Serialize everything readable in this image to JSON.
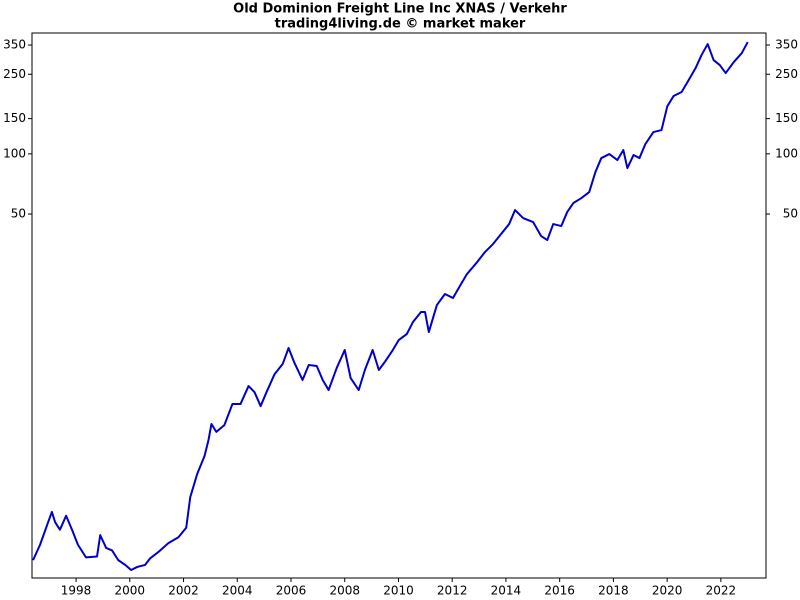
{
  "chart_data": {
    "type": "line",
    "title": "Old Dominion Freight Line Inc XNAS / Verkehr",
    "subtitle": "trading4living.de © market maker",
    "color": "#0000cc",
    "ylog": true,
    "grid": false,
    "xlim": [
      1996.36,
      2023.68
    ],
    "xticks": [
      1998,
      2000,
      2002,
      2004,
      2006,
      2008,
      2010,
      2012,
      2014,
      2016,
      2018,
      2020,
      2022
    ],
    "ylim": [
      0.757,
      402
    ],
    "yticks": [
      50,
      100,
      150,
      250,
      350
    ],
    "x": [
      1996.4,
      1996.66,
      1996.92,
      1997.1,
      1997.22,
      1997.4,
      1997.63,
      1997.85,
      1998.07,
      1998.37,
      1998.78,
      1998.9,
      1999.12,
      1999.34,
      1999.57,
      1999.83,
      2000.05,
      2000.28,
      2000.57,
      2000.76,
      2001.06,
      2001.43,
      2001.81,
      2002.1,
      2002.25,
      2002.51,
      2002.78,
      2002.93,
      2003.04,
      2003.22,
      2003.52,
      2003.82,
      2004.12,
      2004.42,
      2004.64,
      2004.87,
      2005.09,
      2005.39,
      2005.69,
      2005.91,
      2006.13,
      2006.43,
      2006.66,
      2006.96,
      2007.18,
      2007.4,
      2007.7,
      2008.0,
      2008.22,
      2008.52,
      2008.75,
      2009.04,
      2009.27,
      2009.49,
      2009.79,
      2010.01,
      2010.31,
      2010.54,
      2010.84,
      2010.99,
      2011.13,
      2011.43,
      2011.73,
      2012.03,
      2012.33,
      2012.55,
      2012.93,
      2013.22,
      2013.52,
      2013.82,
      2014.12,
      2014.34,
      2014.64,
      2015.01,
      2015.31,
      2015.54,
      2015.76,
      2016.06,
      2016.28,
      2016.51,
      2016.81,
      2017.1,
      2017.33,
      2017.55,
      2017.85,
      2018.15,
      2018.37,
      2018.52,
      2018.75,
      2018.97,
      2019.19,
      2019.49,
      2019.79,
      2020.01,
      2020.24,
      2020.54,
      2020.76,
      2021.06,
      2021.28,
      2021.51,
      2021.73,
      2021.96,
      2022.18,
      2022.48,
      2022.78,
      2023.0
    ],
    "values": [
      0.93,
      1.11,
      1.39,
      1.62,
      1.44,
      1.32,
      1.55,
      1.32,
      1.11,
      0.96,
      0.97,
      1.24,
      1.07,
      1.04,
      0.93,
      0.88,
      0.83,
      0.86,
      0.88,
      0.95,
      1.02,
      1.13,
      1.21,
      1.35,
      1.92,
      2.51,
      3.08,
      3.71,
      4.46,
      4.07,
      4.4,
      5.61,
      5.61,
      6.9,
      6.44,
      5.48,
      6.44,
      7.92,
      8.89,
      10.69,
      9.0,
      7.4,
      8.79,
      8.69,
      7.4,
      6.59,
      8.49,
      10.45,
      7.57,
      6.59,
      8.3,
      10.45,
      8.3,
      9.1,
      10.45,
      11.72,
      12.56,
      14.42,
      16.18,
      16.18,
      12.85,
      17.54,
      19.91,
      19.01,
      22.33,
      25.06,
      28.77,
      32.28,
      35.4,
      39.72,
      44.56,
      52.36,
      47.75,
      45.6,
      38.81,
      37.07,
      44.56,
      43.55,
      51.16,
      56.76,
      60.1,
      64.41,
      81.08,
      95.27,
      99.76,
      93.1,
      104.46,
      84.91,
      98.62,
      95.27,
      111.94,
      128.52,
      131.51,
      173.39,
      194.54,
      203.71,
      228.55,
      268.52,
      311.83,
      353.95,
      294.42,
      277.96,
      253.5,
      287.7,
      319.12,
      362.17
    ]
  }
}
